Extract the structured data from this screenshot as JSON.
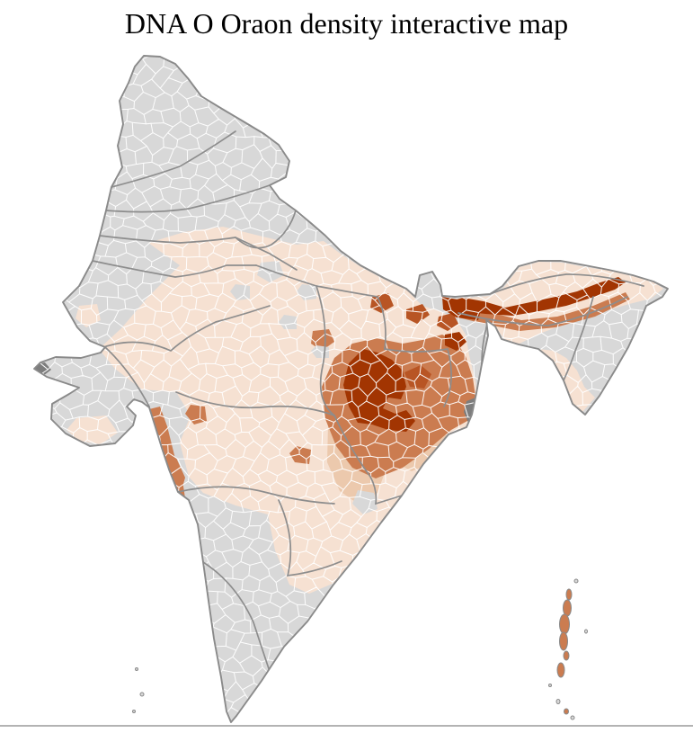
{
  "title": "DNA O Oraon density interactive map",
  "map": {
    "description": "India district-level choropleth",
    "palette": {
      "background": "#ffffff",
      "no_data": "#d8d8d8",
      "very_low": "#f6e1d2",
      "low": "#ecc9ad",
      "medium": "#cb7c50",
      "high": "#b85524",
      "very_high": "#a23502",
      "dark_gray": "#7d7d7d",
      "district_border": "#ffffff",
      "state_border": "#8d8d8d",
      "coast": "#8a8a8a",
      "divider": "#b3b3b3"
    }
  }
}
